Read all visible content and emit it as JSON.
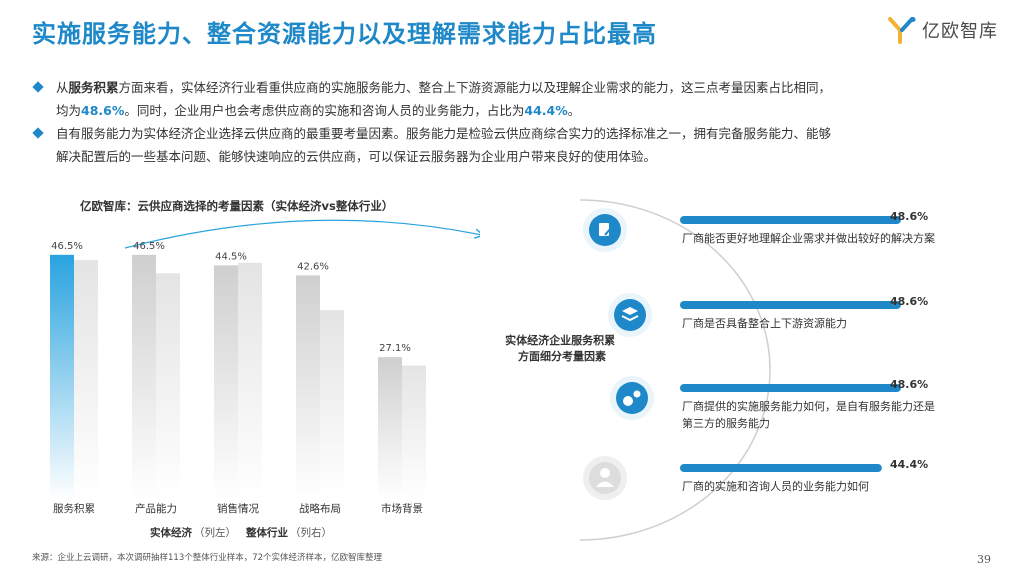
{
  "title": "实施服务能力、整合资源能力以及理解需求能力占比最高",
  "brand": {
    "name": "亿欧智库",
    "logo_icon": "yiou-logo-icon",
    "accent": "#1e88c8"
  },
  "bullets": [
    {
      "parts": [
        "从",
        "服务积累",
        "方面来看，实体经济行业看重供应商的实施服务能力、整合上下游资源能力以及理解企业需求的能力，这三点考量因素占比相同，"
      ],
      "line2": [
        "均为",
        "48.6%",
        "。同时，企业用户也会考虑供应商的实施和咨询人员的业务能力，占比为",
        "44.4%",
        "。"
      ]
    },
    {
      "line1": "自有服务能力为实体经济企业选择云供应商的最重要考量因素。服务能力是检验云供应商综合实力的选择标准之一，拥有完备服务能力、能够",
      "line2": "解决配置后的一些基本问题、能够快速响应的云供应商，可以保证云服务器为企业用户带来良好的使用体验。"
    }
  ],
  "chart_data": [
    {
      "type": "bar",
      "title": "亿欧智库：云供应商选择的考量因素（实体经济vs整体行业）",
      "categories": [
        "服务积累",
        "产品能力",
        "销售情况",
        "战略布局",
        "市场背景"
      ],
      "series": [
        {
          "name": "实体经济",
          "name_suffix": "（列左）",
          "values": [
            46.5,
            46.5,
            44.5,
            42.6,
            27.1
          ],
          "color": "#29a3df"
        },
        {
          "name": "整体行业",
          "name_suffix": "（列右）",
          "values": [
            45.5,
            43.0,
            45.0,
            36.0,
            25.5
          ],
          "color": "#e4e4e4"
        }
      ],
      "data_labels": [
        "46.5%",
        "46.5%",
        "44.5%",
        "42.6%",
        "27.1%"
      ],
      "ylim": [
        0,
        55
      ]
    },
    {
      "type": "bar",
      "orientation": "horizontal",
      "center_label": "实体经济企业服务积累方面细分考量因素",
      "center_label_lines": [
        "实体经济企业服务积累",
        "方面细分考量因素"
      ],
      "categories": [
        "厂商能否更好地理解企业需求并做出较好的解决方案",
        "厂商是否具备整合上下游资源能力",
        "厂商提供的实施服务能力如何，是自有服务能力还是第三方的服务能力",
        "厂商的实施和咨询人员的业务能力如何"
      ],
      "values": [
        48.6,
        48.6,
        48.6,
        44.4
      ],
      "data_labels": [
        "48.6%",
        "48.6%",
        "48.6%",
        "44.4%"
      ],
      "icons": [
        "document-edit-icon",
        "layers-icon",
        "gears-icon",
        "user-icon"
      ],
      "bar_color": "#1e88c8"
    }
  ],
  "source": "来源：企业上云调研，本次调研抽样113个整体行业样本，72个实体经济样本，亿欧智库整理",
  "page_number": "39"
}
